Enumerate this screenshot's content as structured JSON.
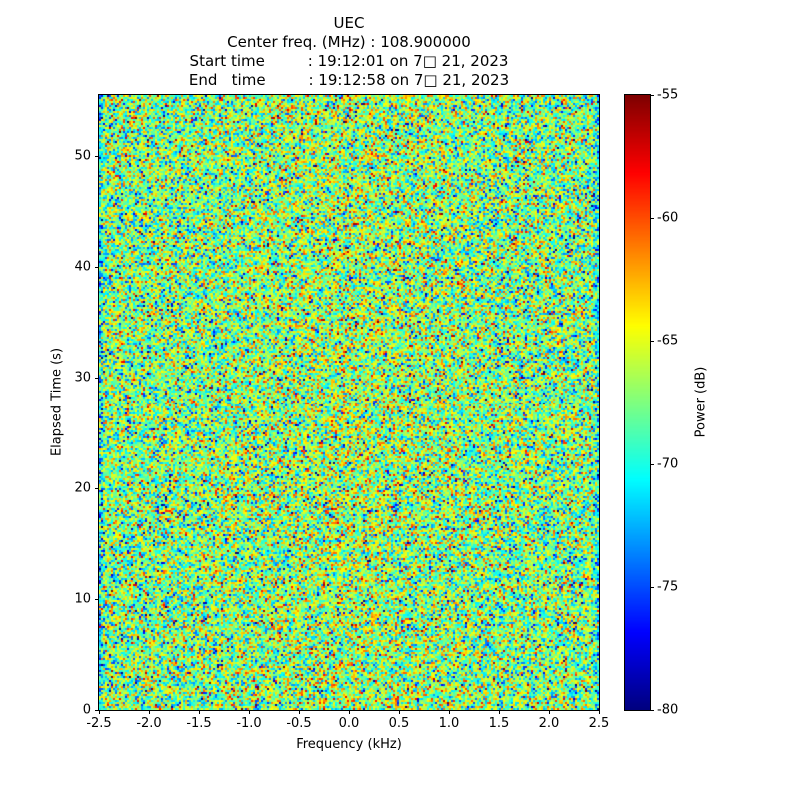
{
  "title": "UEC",
  "header": {
    "center_freq_line": "Center freq. (MHz) : 108.900000",
    "start_time_line": "Start time         : 19:12:01 on 7□ 21, 2023",
    "end_time_line": "End   time         : 19:12:58 on 7□ 21, 2023"
  },
  "chart_data": {
    "type": "heatmap",
    "title": "UEC",
    "subtitle_lines": [
      "Center freq. (MHz) : 108.900000",
      "Start time         : 19:12:01 on 7□ 21, 2023",
      "End   time         : 19:12:58 on 7□ 21, 2023"
    ],
    "xlabel": "Frequency (kHz)",
    "ylabel": "Elapsed Time (s)",
    "colorbar_label": "Power (dB)",
    "xlim": [
      -2.5,
      2.5
    ],
    "ylim": [
      0,
      55.5
    ],
    "xticks": [
      -2.5,
      -2.0,
      -1.5,
      -1.0,
      -0.5,
      0.0,
      0.5,
      1.0,
      1.5,
      2.0,
      2.5
    ],
    "xtick_labels": [
      "-2.5",
      "-2.0",
      "-1.5",
      "-1.0",
      "-0.5",
      "0.0",
      "0.5",
      "1.0",
      "1.5",
      "2.0",
      "2.5"
    ],
    "yticks": [
      0,
      10,
      20,
      30,
      40,
      50
    ],
    "ytick_labels": [
      "0",
      "10",
      "20",
      "30",
      "40",
      "50"
    ],
    "colorbar_ticks": [
      -55,
      -60,
      -65,
      -70,
      -75,
      -80
    ],
    "colorbar_tick_labels": [
      "-55",
      "-60",
      "-65",
      "-70",
      "-75",
      "-80"
    ],
    "vmin": -80,
    "vmax": -55,
    "colormap": "jet",
    "grid": {
      "cols": 250,
      "rows": 308
    },
    "noise": {
      "description": "random RF noise field, mostly green/teal/yellow with sparse red and dark-blue speckles",
      "distribution": "gaussian",
      "mean_db": -67.5,
      "std_db": 3.8,
      "center_boost_db": 0.8,
      "edge_drop_db": 3,
      "low_outlier_prob": 0.02,
      "high_outlier_prob": 0.015,
      "seed": 42
    },
    "legend_position": "right-colorbar",
    "grid_lines": false
  }
}
